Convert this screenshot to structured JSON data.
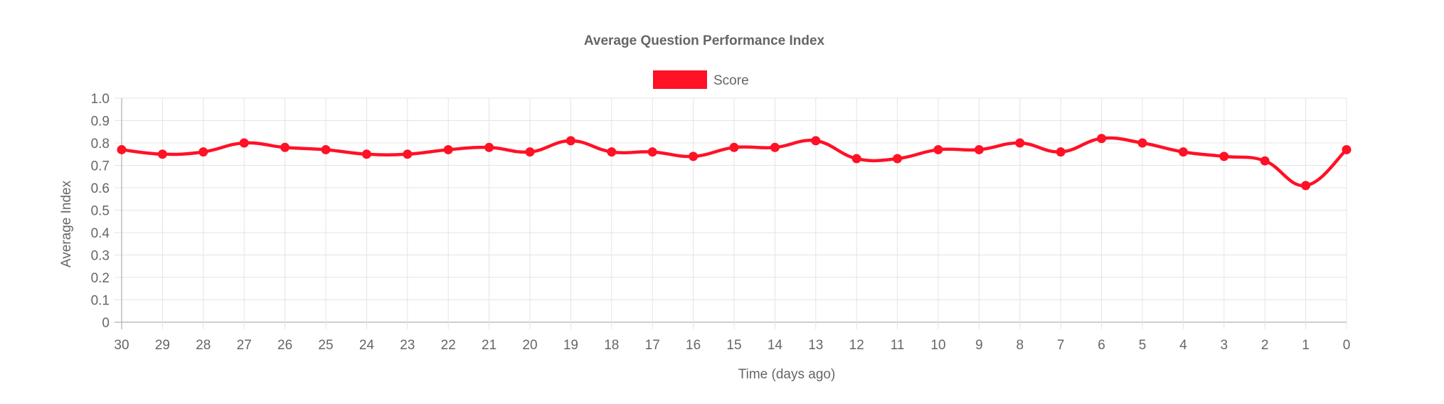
{
  "chart_data": {
    "type": "line",
    "title": "Average Question Performance Index",
    "xlabel": "Time (days ago)",
    "ylabel": "Average Index",
    "categories": [
      "30",
      "29",
      "28",
      "27",
      "26",
      "25",
      "24",
      "23",
      "22",
      "21",
      "20",
      "19",
      "18",
      "17",
      "16",
      "15",
      "14",
      "13",
      "12",
      "11",
      "10",
      "9",
      "8",
      "7",
      "6",
      "5",
      "4",
      "3",
      "2",
      "1",
      "0"
    ],
    "y_ticks": [
      "0",
      "0.1",
      "0.2",
      "0.3",
      "0.4",
      "0.5",
      "0.6",
      "0.7",
      "0.8",
      "0.9",
      "1.0"
    ],
    "ylim": [
      0,
      1.0
    ],
    "grid": true,
    "legend_position": "top",
    "series": [
      {
        "name": "Score",
        "color": "#ff1126",
        "values": [
          0.77,
          0.75,
          0.76,
          0.8,
          0.78,
          0.77,
          0.75,
          0.75,
          0.77,
          0.78,
          0.76,
          0.81,
          0.76,
          0.76,
          0.74,
          0.78,
          0.78,
          0.81,
          0.73,
          0.73,
          0.77,
          0.77,
          0.8,
          0.76,
          0.82,
          0.8,
          0.76,
          0.74,
          0.72,
          0.61,
          0.77
        ]
      }
    ]
  }
}
